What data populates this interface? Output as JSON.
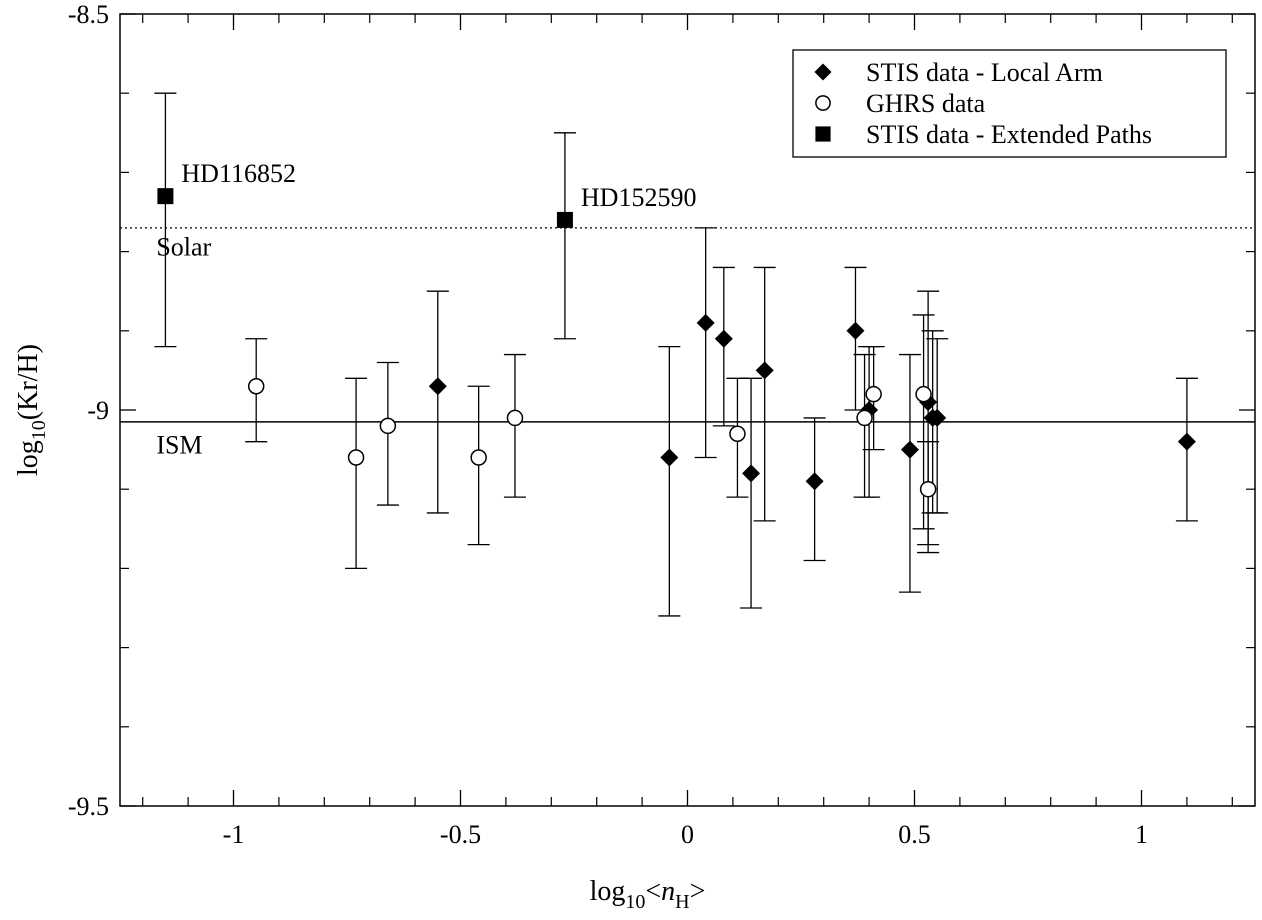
{
  "chart_data": {
    "type": "scatter",
    "xlabel": {
      "base": "log",
      "sub": "10",
      "mid": "<",
      "var": "n",
      "varsub": "H",
      "end": ">"
    },
    "ylabel": {
      "base": "log",
      "sub": "10",
      "rest": "(Kr/H)"
    },
    "xlim": [
      -1.25,
      1.25
    ],
    "ylim": [
      -9.5,
      -8.5
    ],
    "xticks": [
      {
        "v": -1,
        "label": "-1"
      },
      {
        "v": -0.5,
        "label": "-0.5"
      },
      {
        "v": 0,
        "label": "0"
      },
      {
        "v": 0.5,
        "label": "0.5"
      },
      {
        "v": 1,
        "label": "1"
      }
    ],
    "xminor": [
      -1.2,
      -1.1,
      -0.9,
      -0.8,
      -0.7,
      -0.6,
      -0.4,
      -0.3,
      -0.2,
      -0.1,
      0.1,
      0.2,
      0.3,
      0.4,
      0.6,
      0.7,
      0.8,
      0.9,
      1.1,
      1.2
    ],
    "yticks": [
      {
        "v": -8.5,
        "label": "-8.5"
      },
      {
        "v": -9,
        "label": "-9"
      },
      {
        "v": -9.5,
        "label": "-9.5"
      }
    ],
    "yminor": [
      -8.6,
      -8.7,
      -8.8,
      -8.9,
      -9.1,
      -9.2,
      -9.3,
      -9.4
    ],
    "reference_lines": [
      {
        "name": "Solar",
        "y": -8.77,
        "style": "dotted",
        "label_x": -1.17,
        "label_dy": 0.035
      },
      {
        "name": "ISM",
        "y": -9.015,
        "style": "solid",
        "label_x": -1.17,
        "label_dy": 0.04
      }
    ],
    "series": [
      {
        "name": "STIS data - Local Arm",
        "marker": "diamond",
        "points": [
          {
            "x": -0.55,
            "y": -8.97,
            "lo": -9.13,
            "hi": -8.85
          },
          {
            "x": -0.04,
            "y": -9.06,
            "lo": -9.26,
            "hi": -8.92
          },
          {
            "x": 0.04,
            "y": -8.89,
            "lo": -9.06,
            "hi": -8.77
          },
          {
            "x": 0.08,
            "y": -8.91,
            "lo": -9.02,
            "hi": -8.82
          },
          {
            "x": 0.14,
            "y": -9.08,
            "lo": -9.25,
            "hi": -8.96
          },
          {
            "x": 0.17,
            "y": -8.95,
            "lo": -9.14,
            "hi": -8.82
          },
          {
            "x": 0.28,
            "y": -9.09,
            "lo": -9.19,
            "hi": -9.01
          },
          {
            "x": 0.37,
            "y": -8.9,
            "lo": -9.0,
            "hi": -8.82
          },
          {
            "x": 0.4,
            "y": -9.0,
            "lo": -9.11,
            "hi": -8.92
          },
          {
            "x": 0.49,
            "y": -9.05,
            "lo": -9.23,
            "hi": -8.93
          },
          {
            "x": 0.53,
            "y": -8.99,
            "lo": -9.17,
            "hi": -8.85
          },
          {
            "x": 0.54,
            "y": -9.01,
            "lo": -9.13,
            "hi": -8.9
          },
          {
            "x": 0.55,
            "y": -9.01,
            "lo": -9.13,
            "hi": -8.91
          },
          {
            "x": 1.1,
            "y": -9.04,
            "lo": -9.14,
            "hi": -8.96
          }
        ]
      },
      {
        "name": "GHRS data",
        "marker": "circle",
        "points": [
          {
            "x": -0.95,
            "y": -8.97,
            "lo": -9.04,
            "hi": -8.91
          },
          {
            "x": -0.73,
            "y": -9.06,
            "lo": -9.2,
            "hi": -8.96
          },
          {
            "x": -0.66,
            "y": -9.02,
            "lo": -9.12,
            "hi": -8.94
          },
          {
            "x": -0.46,
            "y": -9.06,
            "lo": -9.17,
            "hi": -8.97
          },
          {
            "x": -0.38,
            "y": -9.01,
            "lo": -9.11,
            "hi": -8.93
          },
          {
            "x": 0.11,
            "y": -9.03,
            "lo": -9.11,
            "hi": -8.96
          },
          {
            "x": 0.39,
            "y": -9.01,
            "lo": -9.11,
            "hi": -8.93
          },
          {
            "x": 0.41,
            "y": -8.98,
            "lo": -9.05,
            "hi": -8.92
          },
          {
            "x": 0.52,
            "y": -8.98,
            "lo": -9.15,
            "hi": -8.88
          },
          {
            "x": 0.53,
            "y": -9.1,
            "lo": -9.18,
            "hi": -9.04
          }
        ]
      },
      {
        "name": "STIS data - Extended Paths",
        "marker": "square",
        "points": [
          {
            "x": -1.15,
            "y": -8.73,
            "lo": -8.92,
            "hi": -8.6,
            "label": "HD116852"
          },
          {
            "x": -0.27,
            "y": -8.76,
            "lo": -8.91,
            "hi": -8.65,
            "label": "HD152590"
          }
        ]
      }
    ],
    "legend": {
      "position": "top-right"
    }
  }
}
